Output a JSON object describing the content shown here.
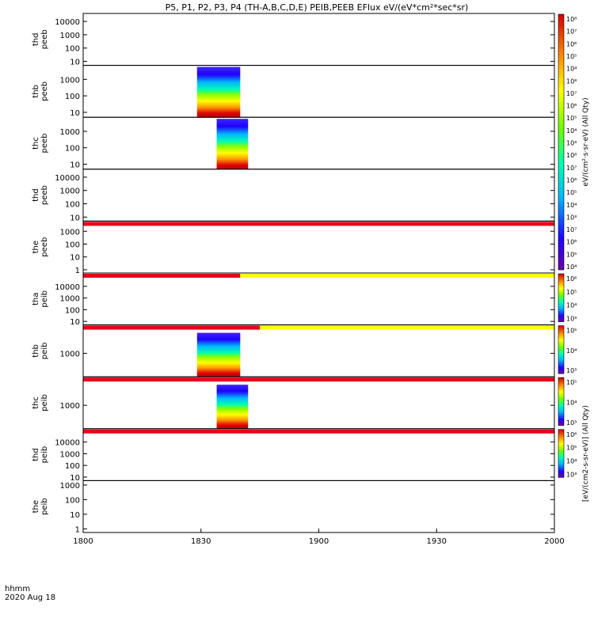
{
  "chart_data": {
    "type": "heatmap",
    "title": "P5, P1, P2, P3, P4 (TH-A,B,C,D,E) PEIB,PEEB EFlux eV/(eV*cm²*sec*sr)",
    "x_ticks": [
      "1800",
      "1830",
      "1900",
      "1930",
      "2000"
    ],
    "x_range": [
      "1800",
      "2000"
    ],
    "x_label_line1": "hhmm",
    "x_label_line2": "2020 Aug 18",
    "panels": [
      {
        "label_line1": "thd",
        "label_line2": "peeb",
        "y_ticks": [
          "10",
          "100",
          "1000",
          "10000"
        ],
        "y_log_range": [
          0.7,
          4.6
        ],
        "bar": null,
        "blocks": []
      },
      {
        "label_line1": "thb",
        "label_line2": "peeb",
        "y_ticks": [
          "10",
          "100",
          "1000"
        ],
        "y_log_range": [
          0.7,
          3.85
        ],
        "bar": null,
        "blocks": [
          {
            "t_start": "1829",
            "t_end": "1840"
          }
        ]
      },
      {
        "label_line1": "thc",
        "label_line2": "peeb",
        "y_ticks": [
          "10",
          "100",
          "1000"
        ],
        "y_log_range": [
          0.7,
          3.85
        ],
        "bar": null,
        "blocks": [
          {
            "t_start": "1834",
            "t_end": "1842"
          }
        ]
      },
      {
        "label_line1": "thd",
        "label_line2": "peeb",
        "y_ticks": [
          "10",
          "100",
          "1000",
          "10000"
        ],
        "y_log_range": [
          0.7,
          4.6
        ],
        "bar": null,
        "blocks": []
      },
      {
        "label_line1": "the",
        "label_line2": "peeb",
        "y_ticks": [
          "1",
          "10",
          "100",
          "1000"
        ],
        "y_log_range": [
          -0.25,
          3.3
        ],
        "bar": {
          "red_until": "2000",
          "yellow_until": "2000"
        },
        "blocks": []
      },
      {
        "label_line1": "tha",
        "label_line2": "peib",
        "y_ticks": [
          "10",
          "100",
          "1000",
          "10000"
        ],
        "y_log_range": [
          0.7,
          4.6
        ],
        "bar": {
          "red_until": "1840",
          "yellow_until": "2000"
        },
        "blocks": []
      },
      {
        "label_line1": "thb",
        "label_line2": "peib",
        "y_ticks": [
          "1000"
        ],
        "y_log_range": [
          2.1,
          3.85
        ],
        "bar": {
          "red_until": "1845",
          "yellow_until": "2000"
        },
        "blocks": [
          {
            "t_start": "1829",
            "t_end": "1840"
          }
        ]
      },
      {
        "label_line1": "thc",
        "label_line2": "peib",
        "y_ticks": [
          "1000"
        ],
        "y_log_range": [
          2.1,
          3.85
        ],
        "bar": {
          "red_until": "2000",
          "yellow_until": "2000"
        },
        "blocks": [
          {
            "t_start": "1834",
            "t_end": "1842"
          }
        ]
      },
      {
        "label_line1": "thd",
        "label_line2": "peib",
        "y_ticks": [
          "10",
          "100",
          "1000",
          "10000"
        ],
        "y_log_range": [
          0.7,
          4.6
        ],
        "bar": {
          "red_until": "2000",
          "yellow_until": "2000"
        },
        "blocks": []
      },
      {
        "label_line1": "the",
        "label_line2": "peib",
        "y_ticks": [
          "1",
          "10",
          "100",
          "1000"
        ],
        "y_log_range": [
          -0.25,
          3.3
        ],
        "bar": null,
        "blocks": []
      }
    ],
    "colorbars": [
      {
        "panels": [
          0,
          4
        ],
        "ticks": [
          "10⁸",
          "10⁷",
          "10⁶",
          "10⁵",
          "10⁴",
          "10⁸",
          "10⁷",
          "10⁶",
          "10⁵",
          "10⁴",
          "10³",
          "10⁸",
          "10⁷",
          "10⁶",
          "10⁵",
          "10⁴",
          "10³",
          "10⁷",
          "10⁶",
          "10⁵",
          "10⁴"
        ],
        "label": "eV/(cm²·s·sr·eV) (All Qty)"
      },
      {
        "panels": [
          5,
          5
        ],
        "ticks": [
          "10⁶",
          "10⁵",
          "10⁴",
          "10³"
        ],
        "label": ""
      },
      {
        "panels": [
          6,
          6
        ],
        "ticks": [
          "10⁵",
          "10⁴",
          "10³"
        ],
        "label": ""
      },
      {
        "panels": [
          7,
          7
        ],
        "ticks": [
          "10⁵",
          "10⁴",
          "10³"
        ],
        "label": ""
      },
      {
        "panels": [
          8,
          8
        ],
        "ticks": [
          "10⁶",
          "10⁵",
          "10⁴",
          "10³"
        ],
        "label": "[eV/(cm2-s-sr-eV)] (All Qty)"
      }
    ]
  }
}
